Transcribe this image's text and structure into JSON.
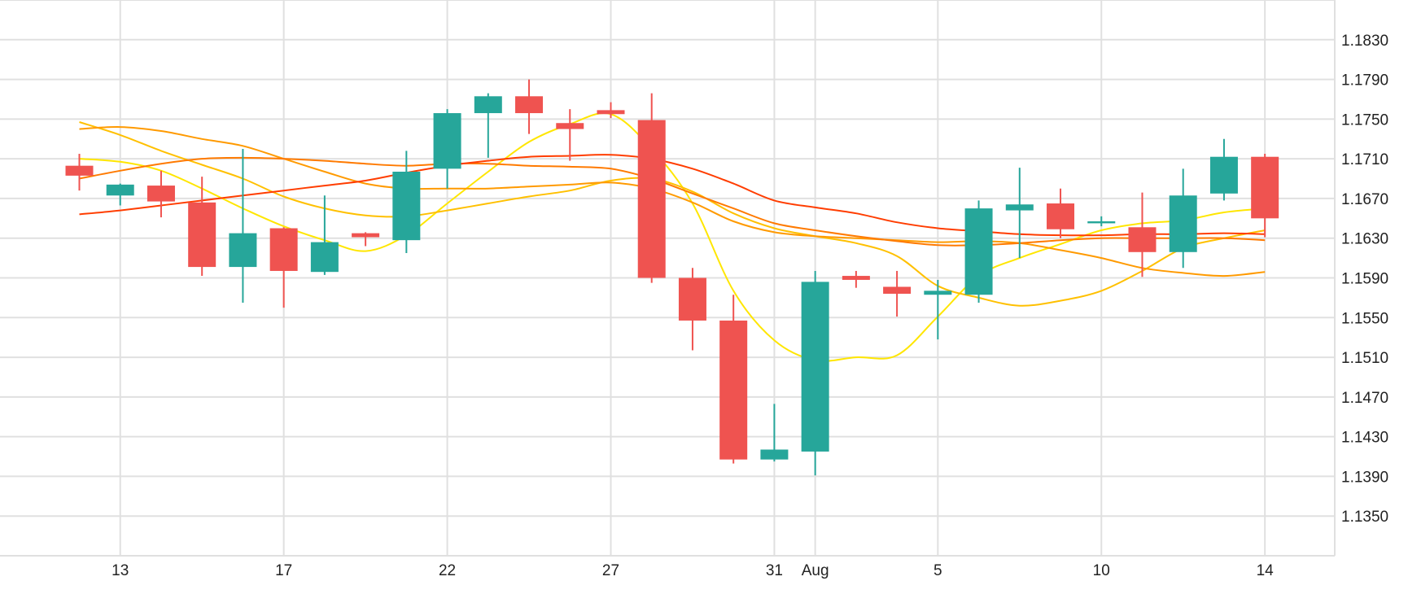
{
  "chart_data": {
    "type": "candlestick",
    "title": "",
    "xlabel": "",
    "ylabel": "",
    "ylim": [
      1.131,
      1.187
    ],
    "grid": true,
    "y_axis_position": "right",
    "y_ticks": [
      1.135,
      1.139,
      1.143,
      1.147,
      1.151,
      1.155,
      1.159,
      1.163,
      1.167,
      1.171,
      1.175,
      1.179,
      1.183
    ],
    "y_tick_labels": [
      "1.1350",
      "1.1390",
      "1.1430",
      "1.1470",
      "1.1510",
      "1.1550",
      "1.1590",
      "1.1630",
      "1.1670",
      "1.1710",
      "1.1750",
      "1.1790",
      "1.1830"
    ],
    "x_ticks": [
      {
        "label": "13",
        "x": 1
      },
      {
        "label": "17",
        "x": 5
      },
      {
        "label": "22",
        "x": 9
      },
      {
        "label": "27",
        "x": 13
      },
      {
        "label": "31",
        "x": 17
      },
      {
        "label": "Aug",
        "x": 18
      },
      {
        "label": "5",
        "x": 21
      },
      {
        "label": "10",
        "x": 25
      },
      {
        "label": "14",
        "x": 29
      }
    ],
    "candles": [
      {
        "x": 0,
        "open": 1.1703,
        "high": 1.1715,
        "low": 1.1678,
        "close": 1.1693
      },
      {
        "x": 1,
        "open": 1.1673,
        "high": 1.1685,
        "low": 1.1663,
        "close": 1.1684
      },
      {
        "x": 2,
        "open": 1.1683,
        "high": 1.1698,
        "low": 1.1651,
        "close": 1.1667
      },
      {
        "x": 3,
        "open": 1.1666,
        "high": 1.1692,
        "low": 1.1592,
        "close": 1.1601
      },
      {
        "x": 4,
        "open": 1.1601,
        "high": 1.172,
        "low": 1.1565,
        "close": 1.1635
      },
      {
        "x": 5,
        "open": 1.164,
        "high": 1.1641,
        "low": 1.156,
        "close": 1.1597
      },
      {
        "x": 6,
        "open": 1.1596,
        "high": 1.1673,
        "low": 1.1593,
        "close": 1.1626
      },
      {
        "x": 7,
        "open": 1.1635,
        "high": 1.1636,
        "low": 1.1622,
        "close": 1.1631
      },
      {
        "x": 8,
        "open": 1.1628,
        "high": 1.1718,
        "low": 1.1615,
        "close": 1.1697
      },
      {
        "x": 9,
        "open": 1.17,
        "high": 1.176,
        "low": 1.168,
        "close": 1.1756
      },
      {
        "x": 10,
        "open": 1.1756,
        "high": 1.1776,
        "low": 1.1711,
        "close": 1.1773
      },
      {
        "x": 11,
        "open": 1.1773,
        "high": 1.179,
        "low": 1.1735,
        "close": 1.1756
      },
      {
        "x": 12,
        "open": 1.1746,
        "high": 1.176,
        "low": 1.1708,
        "close": 1.174
      },
      {
        "x": 13,
        "open": 1.1759,
        "high": 1.1767,
        "low": 1.1751,
        "close": 1.1755
      },
      {
        "x": 14,
        "open": 1.1749,
        "high": 1.1776,
        "low": 1.1585,
        "close": 1.159
      },
      {
        "x": 15,
        "open": 1.159,
        "high": 1.16,
        "low": 1.1517,
        "close": 1.1547
      },
      {
        "x": 16,
        "open": 1.1547,
        "high": 1.1573,
        "low": 1.1403,
        "close": 1.1407
      },
      {
        "x": 17,
        "open": 1.1407,
        "high": 1.1463,
        "low": 1.1405,
        "close": 1.1417
      },
      {
        "x": 18,
        "open": 1.1415,
        "high": 1.1597,
        "low": 1.1391,
        "close": 1.1586
      },
      {
        "x": 19,
        "open": 1.1592,
        "high": 1.1597,
        "low": 1.158,
        "close": 1.1588
      },
      {
        "x": 20,
        "open": 1.1581,
        "high": 1.1597,
        "low": 1.1551,
        "close": 1.1574
      },
      {
        "x": 21,
        "open": 1.1573,
        "high": 1.1588,
        "low": 1.1528,
        "close": 1.1577
      },
      {
        "x": 22,
        "open": 1.1573,
        "high": 1.1668,
        "low": 1.1565,
        "close": 1.166
      },
      {
        "x": 23,
        "open": 1.1658,
        "high": 1.1701,
        "low": 1.161,
        "close": 1.1664
      },
      {
        "x": 24,
        "open": 1.1665,
        "high": 1.168,
        "low": 1.163,
        "close": 1.1639
      },
      {
        "x": 25,
        "open": 1.1645,
        "high": 1.1652,
        "low": 1.1642,
        "close": 1.1647
      },
      {
        "x": 26,
        "open": 1.1641,
        "high": 1.1676,
        "low": 1.1591,
        "close": 1.1616
      },
      {
        "x": 27,
        "open": 1.1616,
        "high": 1.17,
        "low": 1.16,
        "close": 1.1673
      },
      {
        "x": 28,
        "open": 1.1675,
        "high": 1.173,
        "low": 1.1668,
        "close": 1.1712
      },
      {
        "x": 29,
        "open": 1.1712,
        "high": 1.1715,
        "low": 1.1631,
        "close": 1.165
      }
    ],
    "overlays": [
      {
        "color": "#ffe600",
        "x": [
          0,
          1,
          2,
          3,
          4,
          5,
          6,
          7,
          8,
          9,
          10,
          11,
          12,
          13,
          14,
          15,
          16,
          17,
          18,
          19,
          20,
          21,
          22,
          23,
          24,
          25,
          26,
          27,
          28,
          29
        ],
        "y": [
          1.171,
          1.1707,
          1.1698,
          1.168,
          1.166,
          1.1642,
          1.1628,
          1.1617,
          1.1633,
          1.1665,
          1.1697,
          1.1727,
          1.1745,
          1.1755,
          1.172,
          1.1665,
          1.1577,
          1.1527,
          1.1507,
          1.151,
          1.1512,
          1.1551,
          1.1592,
          1.161,
          1.1624,
          1.1638,
          1.1645,
          1.1648,
          1.1656,
          1.166
        ]
      },
      {
        "color": "#ffc000",
        "x": [
          0,
          1,
          2,
          3,
          4,
          5,
          6,
          7,
          8,
          9,
          10,
          11,
          12,
          13,
          14,
          15,
          16,
          17,
          18,
          19,
          20,
          21,
          22,
          23,
          24,
          25,
          26,
          27,
          28,
          29
        ],
        "y": [
          1.1747,
          1.1734,
          1.1718,
          1.1704,
          1.169,
          1.1672,
          1.166,
          1.1653,
          1.1652,
          1.1658,
          1.1665,
          1.1672,
          1.1678,
          1.1688,
          1.169,
          1.1677,
          1.1655,
          1.164,
          1.1632,
          1.1625,
          1.1612,
          1.1582,
          1.157,
          1.1562,
          1.1567,
          1.1577,
          1.1597,
          1.162,
          1.163,
          1.1638
        ]
      },
      {
        "color": "#ff9a00",
        "x": [
          0,
          1,
          2,
          3,
          4,
          5,
          6,
          7,
          8,
          9,
          10,
          11,
          12,
          13,
          14,
          15,
          16,
          17,
          18,
          19,
          20,
          21,
          22,
          23,
          24,
          25,
          26,
          27,
          28,
          29
        ],
        "y": [
          1.174,
          1.1742,
          1.1738,
          1.173,
          1.1723,
          1.171,
          1.1697,
          1.1685,
          1.168,
          1.168,
          1.168,
          1.1682,
          1.1684,
          1.1686,
          1.168,
          1.1666,
          1.1647,
          1.1636,
          1.1632,
          1.163,
          1.1628,
          1.1626,
          1.1627,
          1.1625,
          1.1618,
          1.161,
          1.16,
          1.1595,
          1.1592,
          1.1596
        ]
      },
      {
        "color": "#ff7a00",
        "x": [
          0,
          1,
          2,
          3,
          4,
          5,
          6,
          7,
          8,
          9,
          10,
          11,
          12,
          13,
          14,
          15,
          16,
          17,
          18,
          19,
          20,
          21,
          22,
          23,
          24,
          25,
          26,
          27,
          28,
          29
        ],
        "y": [
          1.169,
          1.1698,
          1.1705,
          1.171,
          1.1711,
          1.171,
          1.1708,
          1.1705,
          1.1703,
          1.1705,
          1.1705,
          1.1703,
          1.1702,
          1.17,
          1.169,
          1.1675,
          1.166,
          1.1645,
          1.1638,
          1.1632,
          1.1627,
          1.1623,
          1.1623,
          1.1625,
          1.1628,
          1.163,
          1.163,
          1.163,
          1.163,
          1.1628
        ]
      },
      {
        "color": "#ff3d00",
        "x": [
          0,
          1,
          2,
          3,
          4,
          5,
          6,
          7,
          8,
          9,
          10,
          11,
          12,
          13,
          14,
          15,
          16,
          17,
          18,
          19,
          20,
          21,
          22,
          23,
          24,
          25,
          26,
          27,
          28,
          29
        ],
        "y": [
          1.1654,
          1.1658,
          1.1663,
          1.1668,
          1.1673,
          1.1678,
          1.1683,
          1.1688,
          1.1696,
          1.1703,
          1.1708,
          1.1712,
          1.1713,
          1.1714,
          1.171,
          1.17,
          1.1685,
          1.1668,
          1.1661,
          1.1655,
          1.1646,
          1.164,
          1.1637,
          1.1634,
          1.1633,
          1.1633,
          1.1634,
          1.1634,
          1.1635,
          1.1634
        ]
      }
    ],
    "colors": {
      "up": "#26a69a",
      "down": "#ef5350",
      "grid": "#e0e0e0",
      "text": "#222222"
    }
  }
}
